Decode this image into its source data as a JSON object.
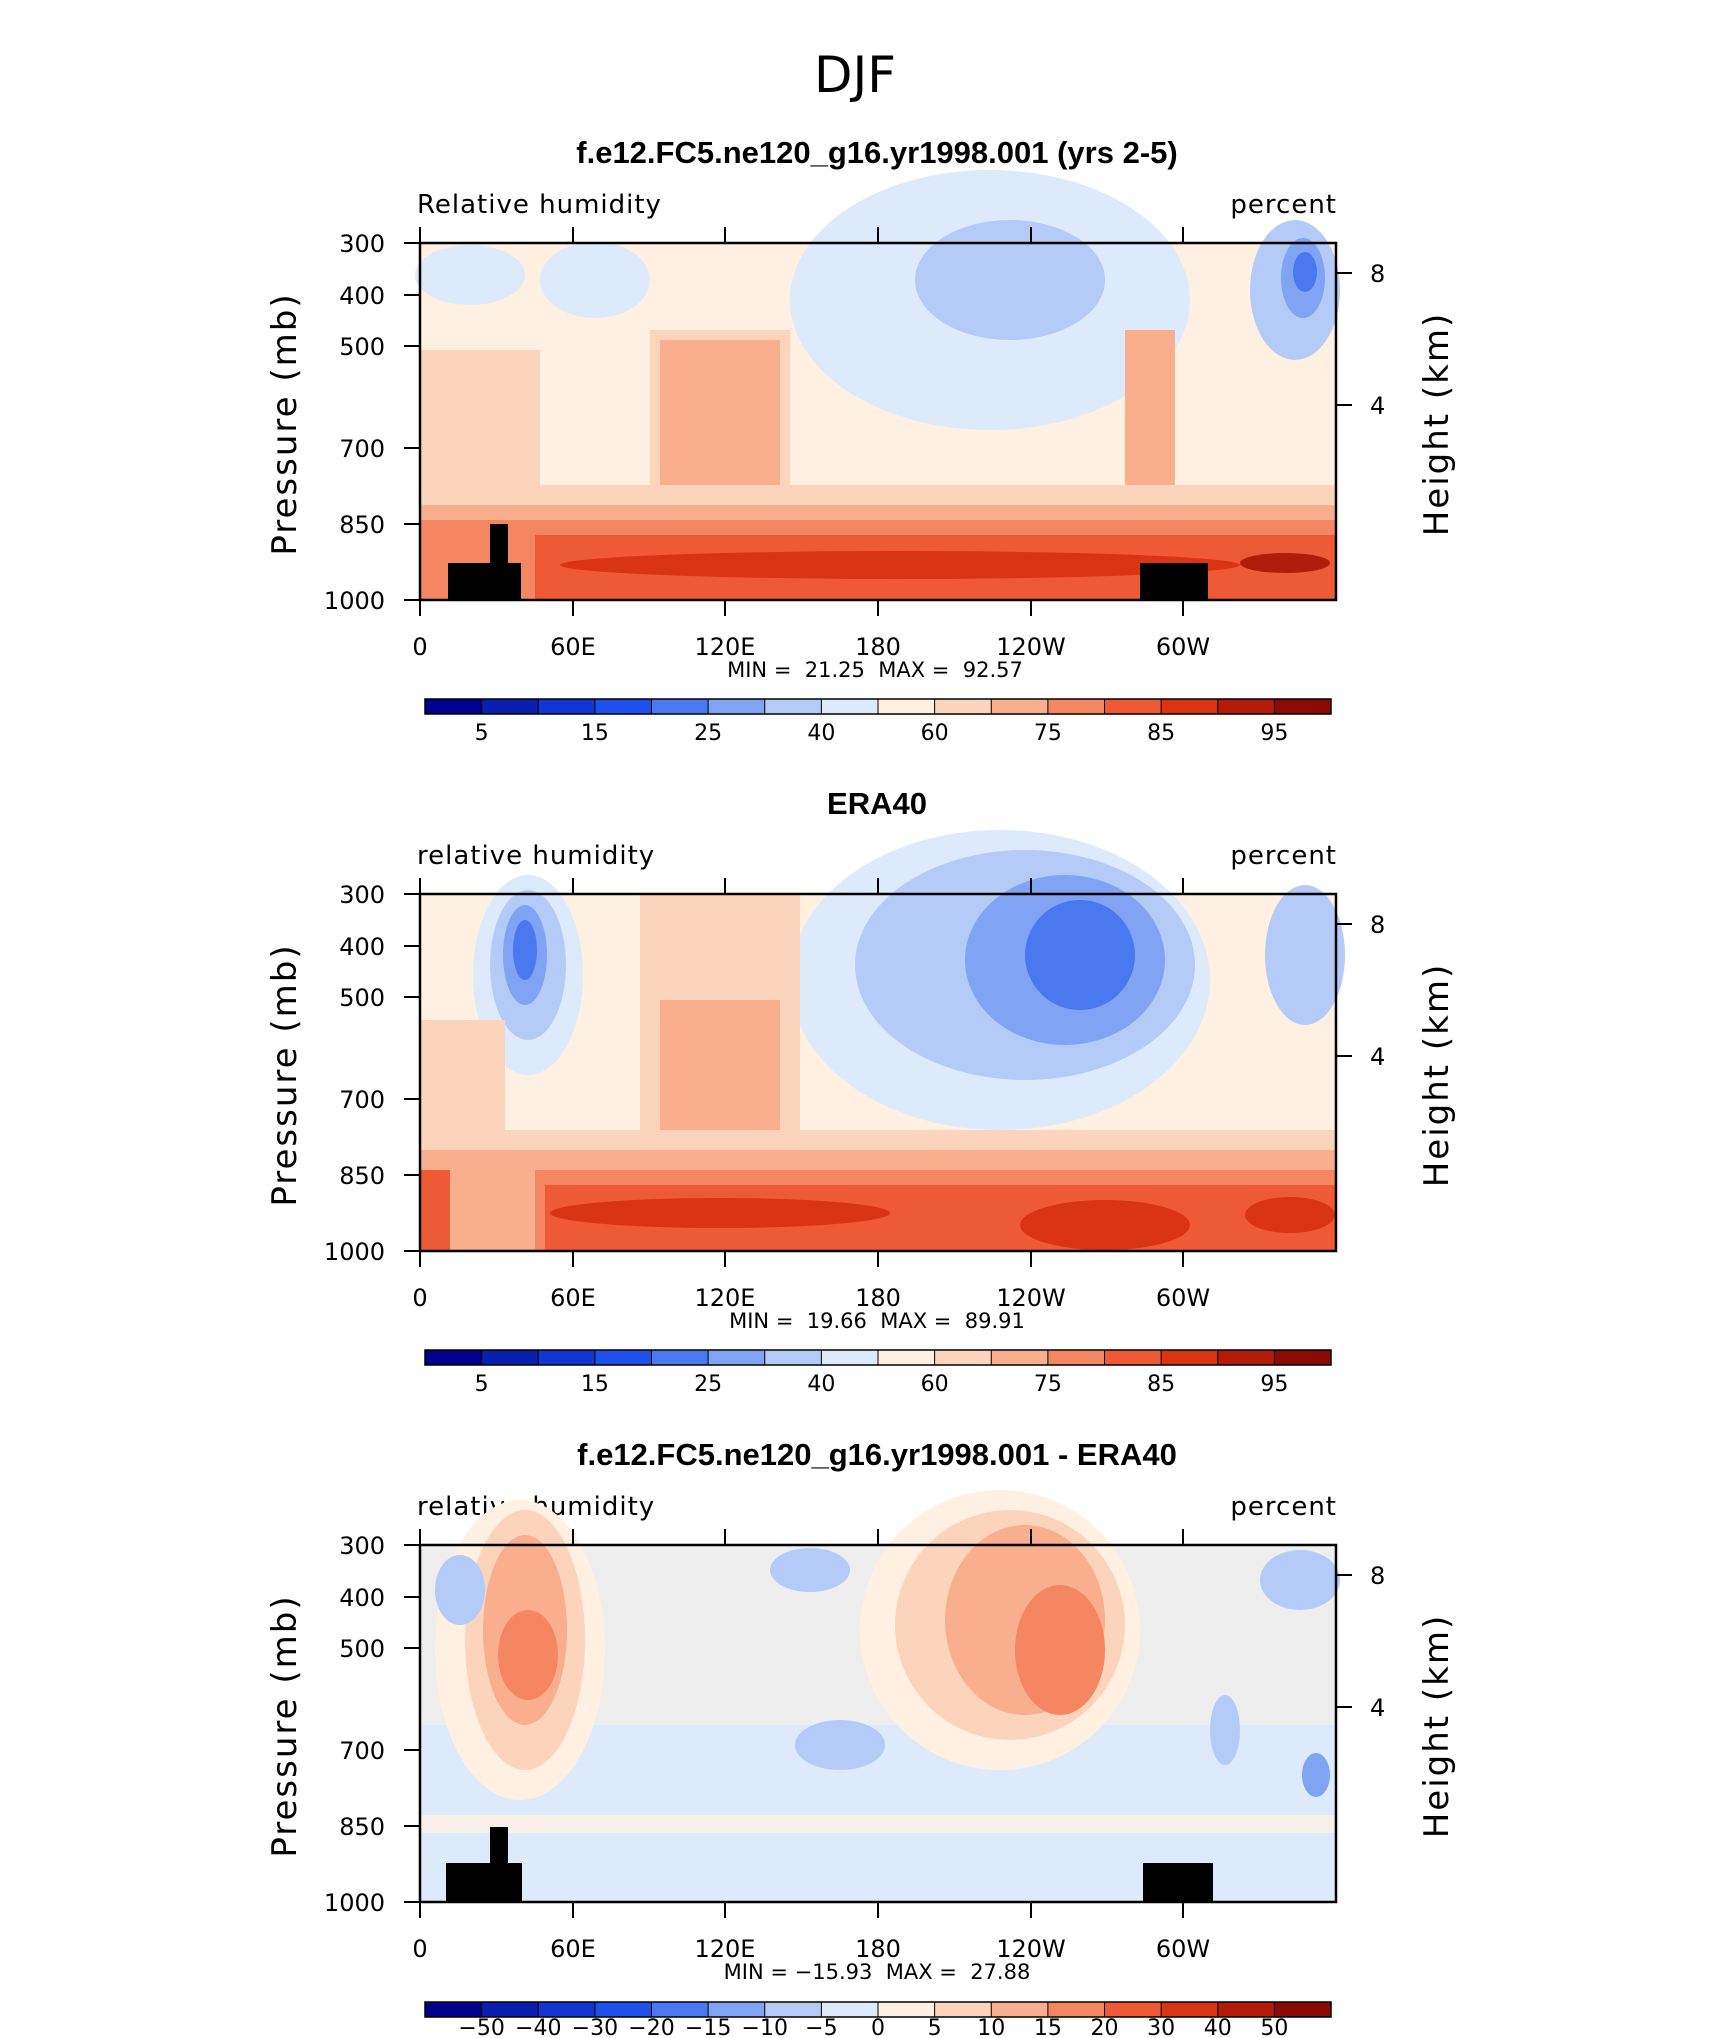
{
  "title": "DJF",
  "axis_common": {
    "y_label_left": "Pressure (mb)",
    "y_label_right": "Height (km)",
    "pressure_ticks": [
      "300",
      "400",
      "500",
      "700",
      "850",
      "1000"
    ],
    "height_ticks": [
      "8",
      "4"
    ],
    "x_ticks": [
      "0",
      "60E",
      "120E",
      "180",
      "120W",
      "60W"
    ]
  },
  "colors": {
    "palette_abs": [
      "#00008f",
      "#0a1fb0",
      "#1436d2",
      "#2050ec",
      "#4a78ef",
      "#80a4f3",
      "#b4cbf8",
      "#dceafc",
      "#fff0e2",
      "#fcd4bc",
      "#f9ae8e",
      "#f48662",
      "#ef5a36",
      "#d93414",
      "#b31c0a",
      "#8a0a06"
    ],
    "palette_diff": [
      "#00008f",
      "#0a1fb0",
      "#1436d2",
      "#2050ec",
      "#4a78ef",
      "#80a4f3",
      "#b4cbf8",
      "#dceafc",
      "#fff0e2",
      "#fcd4bc",
      "#f9ae8e",
      "#f48662",
      "#ef5a36",
      "#d93414",
      "#b31c0a",
      "#8a0a06"
    ],
    "topography": "#000000"
  },
  "panels": [
    {
      "title": "f.e12.FC5.ne120_g16.yr1998.001 (yrs 2-5)",
      "left_label": "Relative humidity",
      "right_label": "percent",
      "stats": "MIN =  21.25  MAX =  92.57",
      "colorbar_labels": [
        "5",
        "15",
        "25",
        "40",
        "60",
        "75",
        "85",
        "95"
      ],
      "chart_data": {
        "type": "heatmap",
        "variable": "relative humidity",
        "units": "percent",
        "x": [
          0,
          60,
          120,
          180,
          240,
          300
        ],
        "x_tick_labels": [
          "0",
          "60E",
          "120E",
          "180",
          "120W",
          "60W"
        ],
        "y_pressure_mb": [
          300,
          400,
          500,
          700,
          850,
          1000
        ],
        "min": 21.25,
        "max": 92.57,
        "levels": [
          0,
          5,
          10,
          15,
          20,
          25,
          30,
          40,
          50,
          60,
          70,
          75,
          80,
          85,
          90,
          95,
          100
        ]
      }
    },
    {
      "title": "ERA40",
      "left_label": "relative humidity",
      "right_label": "percent",
      "stats": "MIN =  19.66  MAX =  89.91",
      "colorbar_labels": [
        "5",
        "15",
        "25",
        "40",
        "60",
        "75",
        "85",
        "95"
      ],
      "chart_data": {
        "type": "heatmap",
        "variable": "relative humidity",
        "units": "percent",
        "x": [
          0,
          60,
          120,
          180,
          240,
          300
        ],
        "x_tick_labels": [
          "0",
          "60E",
          "120E",
          "180",
          "120W",
          "60W"
        ],
        "y_pressure_mb": [
          300,
          400,
          500,
          700,
          850,
          1000
        ],
        "min": 19.66,
        "max": 89.91,
        "levels": [
          0,
          5,
          10,
          15,
          20,
          25,
          30,
          40,
          50,
          60,
          70,
          75,
          80,
          85,
          90,
          95,
          100
        ]
      }
    },
    {
      "title": "f.e12.FC5.ne120_g16.yr1998.001 - ERA40",
      "left_label": "relative humidity",
      "right_label": "percent",
      "stats": "MIN = −15.93  MAX =  27.88",
      "colorbar_labels": [
        "−50",
        "−40",
        "−30",
        "−20",
        "−15",
        "−10",
        "−5",
        "0",
        "5",
        "10",
        "15",
        "20",
        "30",
        "40",
        "50"
      ],
      "chart_data": {
        "type": "heatmap",
        "variable": "relative humidity difference",
        "units": "percent",
        "x": [
          0,
          60,
          120,
          180,
          240,
          300
        ],
        "x_tick_labels": [
          "0",
          "60E",
          "120E",
          "180",
          "120W",
          "60W"
        ],
        "y_pressure_mb": [
          300,
          400,
          500,
          700,
          850,
          1000
        ],
        "min": -15.93,
        "max": 27.88,
        "levels": [
          -50,
          -40,
          -30,
          -20,
          -15,
          -10,
          -5,
          0,
          5,
          10,
          15,
          20,
          30,
          40,
          50
        ]
      }
    }
  ]
}
